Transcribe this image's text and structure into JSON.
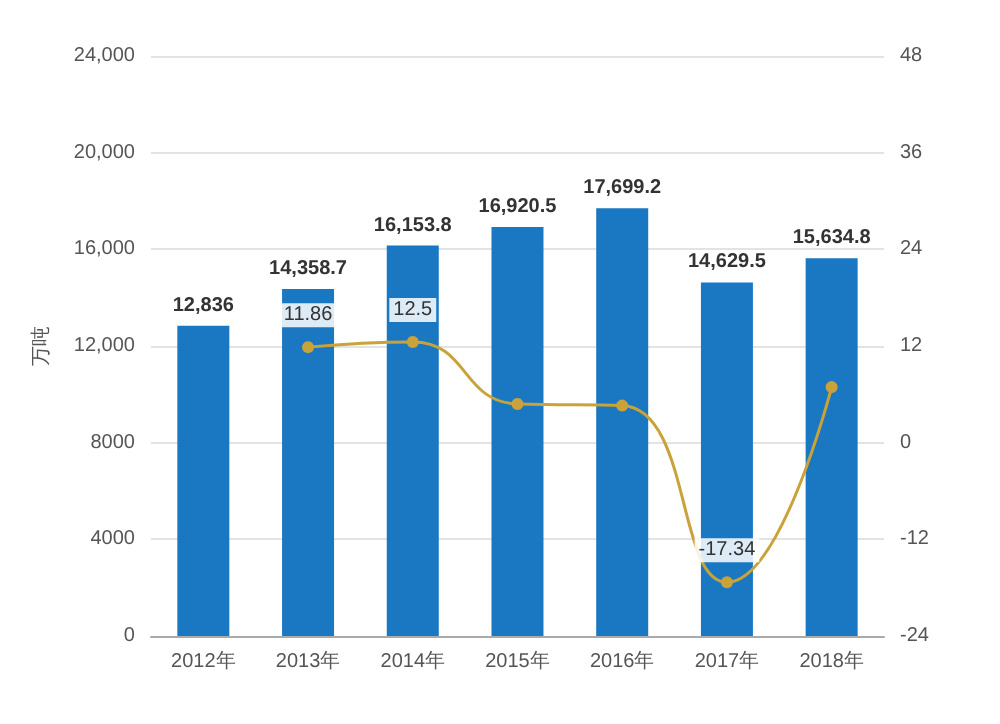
{
  "chart_data": {
    "type": "bar",
    "categories": [
      "2012年",
      "2013年",
      "2014年",
      "2015年",
      "2016年",
      "2017年",
      "2018年"
    ],
    "series": [
      {
        "color": "#1a78c2",
        "values": [
          12836,
          14358.7,
          16153.8,
          16920.5,
          17699.2,
          14629.5,
          15634.8
        ],
        "value_labels": [
          "12,836",
          "14,358.7",
          "16,153.8",
          "16,920.5",
          "17,699.2",
          "14,629.5",
          "15,634.8"
        ]
      },
      {
        "type": "line",
        "axis": "y2",
        "color": "#c9a23a",
        "values": [
          null,
          11.86,
          12.5,
          4.8,
          4.6,
          -17.34,
          6.9
        ],
        "value_labels": [
          null,
          "11.86",
          "12.5",
          null,
          null,
          "-17.34",
          null
        ]
      }
    ],
    "ylabel": "万吨",
    "ylim": [
      0,
      24000
    ],
    "yticks": [
      0,
      4000,
      8000,
      {
        "value": 12000,
        "label": "12,000"
      },
      {
        "value": 16000,
        "label": "16,000"
      },
      {
        "value": 20000,
        "label": "20,000"
      },
      {
        "value": 24000,
        "label": "24,000"
      }
    ],
    "y2lim": [
      -24,
      48
    ],
    "y2ticks": [
      -24,
      -12,
      0,
      12,
      24,
      36,
      48
    ],
    "grid": "y",
    "marker": "circle"
  }
}
